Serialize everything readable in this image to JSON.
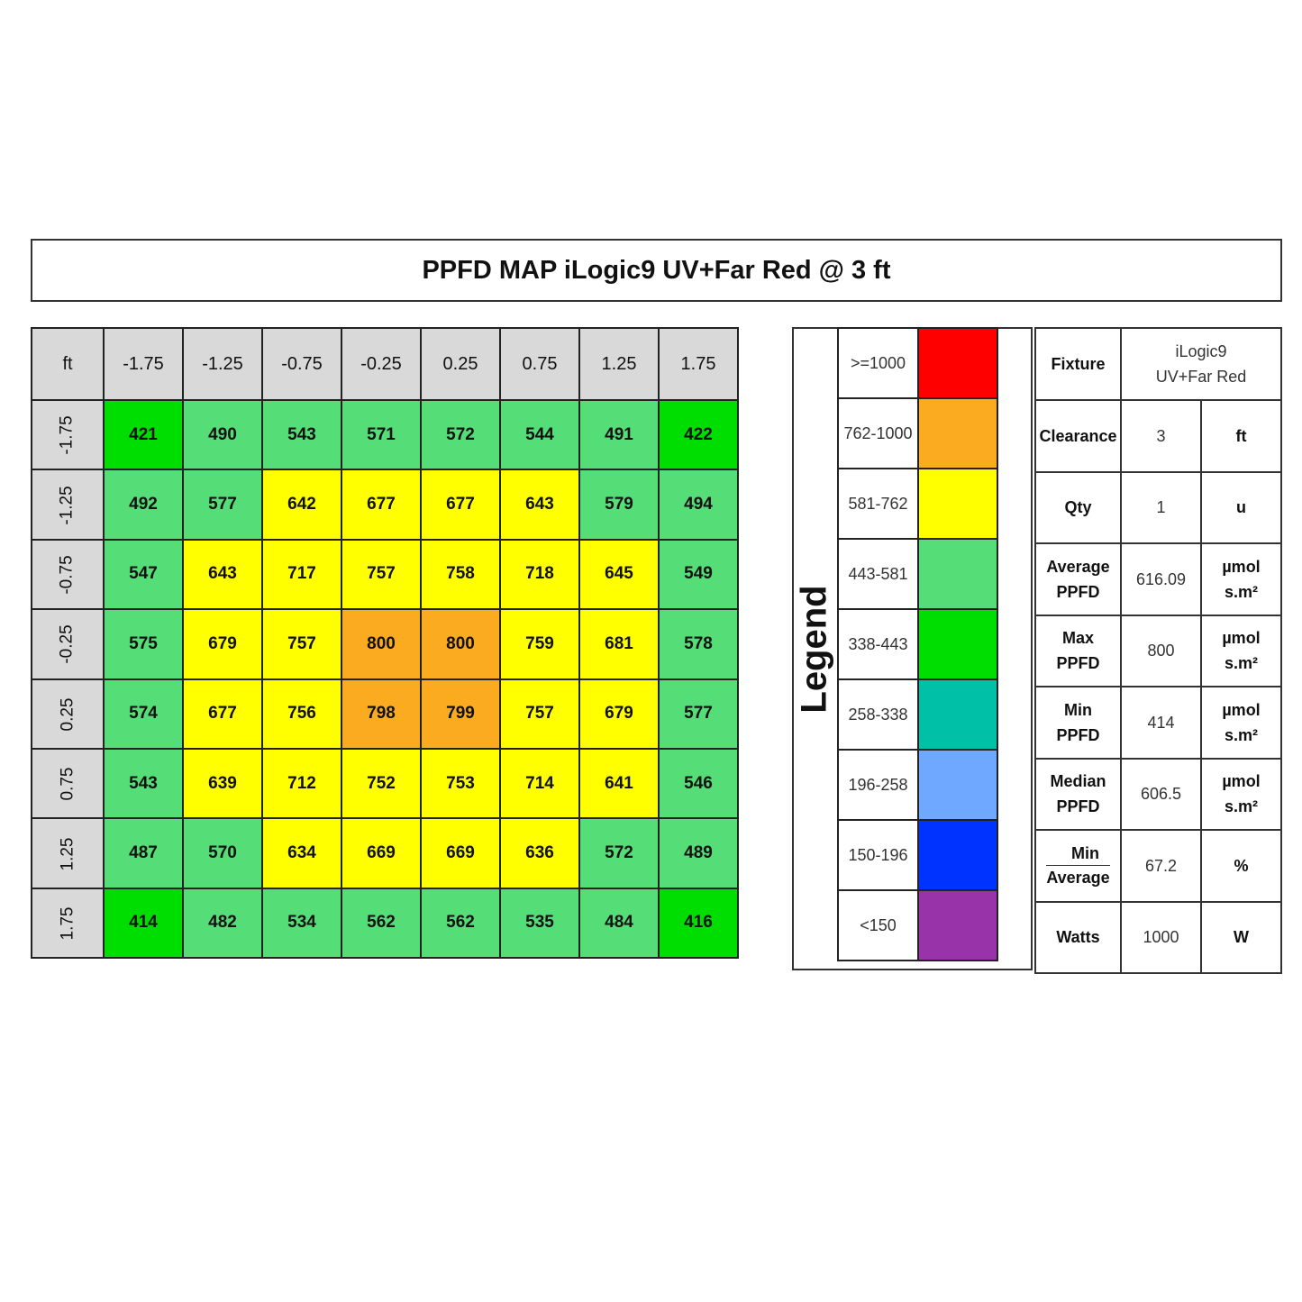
{
  "title": "PPFD MAP iLogic9 UV+Far Red @ 3 ft",
  "chart_data": {
    "type": "heatmap",
    "title": "PPFD MAP iLogic9 UV+Far Red @ 3 ft",
    "corner_label": "ft",
    "x": [
      "-1.75",
      "-1.25",
      "-0.75",
      "-0.25",
      "0.25",
      "0.75",
      "1.25",
      "1.75"
    ],
    "y": [
      "-1.75",
      "-1.25",
      "-0.75",
      "-0.25",
      "0.25",
      "0.75",
      "1.25",
      "1.75"
    ],
    "values": [
      [
        421,
        490,
        543,
        571,
        572,
        544,
        491,
        422
      ],
      [
        492,
        577,
        642,
        677,
        677,
        643,
        579,
        494
      ],
      [
        547,
        643,
        717,
        757,
        758,
        718,
        645,
        549
      ],
      [
        575,
        679,
        757,
        800,
        800,
        759,
        681,
        578
      ],
      [
        574,
        677,
        756,
        798,
        799,
        757,
        679,
        577
      ],
      [
        543,
        639,
        712,
        752,
        753,
        714,
        641,
        546
      ],
      [
        487,
        570,
        634,
        669,
        669,
        636,
        572,
        489
      ],
      [
        414,
        482,
        534,
        562,
        562,
        535,
        484,
        416
      ]
    ]
  },
  "legend": {
    "title": "Legend",
    "items": [
      {
        "label": ">=1000",
        "min": 1000,
        "max": null,
        "color": "#ff0000"
      },
      {
        "label": "762-1000",
        "min": 762,
        "max": 1000,
        "color": "#fbab1f"
      },
      {
        "label": "581-762",
        "min": 581,
        "max": 762,
        "color": "#ffff00"
      },
      {
        "label": "443-581",
        "min": 443,
        "max": 581,
        "color": "#55dd77"
      },
      {
        "label": "338-443",
        "min": 338,
        "max": 443,
        "color": "#00dd00"
      },
      {
        "label": "258-338",
        "min": 258,
        "max": 338,
        "color": "#00c0a8"
      },
      {
        "label": "196-258",
        "min": 196,
        "max": 258,
        "color": "#6fa8ff"
      },
      {
        "label": "150-196",
        "min": 150,
        "max": 196,
        "color": "#0033ff"
      },
      {
        "label": "<150",
        "min": null,
        "max": 150,
        "color": "#9933aa"
      }
    ]
  },
  "info": {
    "fixture": {
      "label": "Fixture",
      "value_line1": "iLogic9",
      "value_line2": "UV+Far Red"
    },
    "rows": [
      {
        "label1": "Clearance",
        "label2": "",
        "value": "3",
        "unit1": "ft",
        "unit2": ""
      },
      {
        "label1": "Qty",
        "label2": "",
        "value": "1",
        "unit1": "u",
        "unit2": ""
      },
      {
        "label1": "Average",
        "label2": "PPFD",
        "value": "616.09",
        "unit1": "µmol",
        "unit2": "s.m²"
      },
      {
        "label1": "Max",
        "label2": "PPFD",
        "value": "800",
        "unit1": "µmol",
        "unit2": "s.m²"
      },
      {
        "label1": "Min",
        "label2": "PPFD",
        "value": "414",
        "unit1": "µmol",
        "unit2": "s.m²"
      },
      {
        "label1": "Median",
        "label2": "PPFD",
        "value": "606.5",
        "unit1": "µmol",
        "unit2": "s.m²"
      }
    ],
    "ratio": {
      "numerator": "Min",
      "denominator": "Average",
      "value": "67.2",
      "unit": "%"
    },
    "watts": {
      "label": "Watts",
      "value": "1000",
      "unit": "W"
    }
  }
}
